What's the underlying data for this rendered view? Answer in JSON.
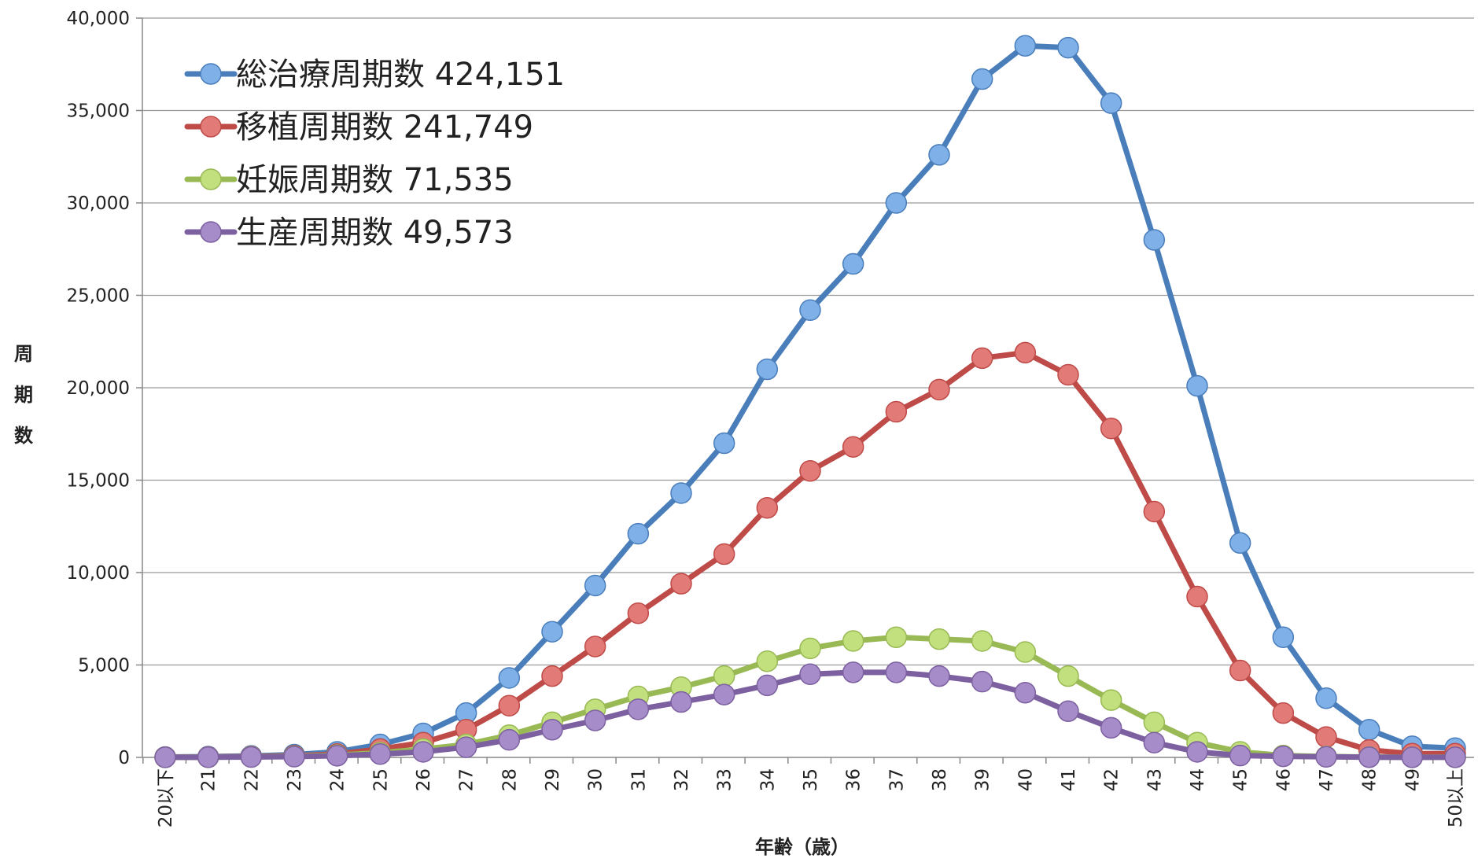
{
  "chart_data": {
    "type": "line",
    "title": "",
    "xlabel": "年齢（歳）",
    "ylabel": "周期数",
    "ylim": [
      0,
      40000
    ],
    "yticks": [
      0,
      5000,
      10000,
      15000,
      20000,
      25000,
      30000,
      35000,
      40000
    ],
    "ytick_labels": [
      "0",
      "5,000",
      "10,000",
      "15,000",
      "20,000",
      "25,000",
      "30,000",
      "35,000",
      "40,000"
    ],
    "grid": true,
    "legend_position": "top-left",
    "categories": [
      "20以下",
      "21",
      "22",
      "23",
      "24",
      "25",
      "26",
      "27",
      "28",
      "29",
      "30",
      "31",
      "32",
      "33",
      "34",
      "35",
      "36",
      "37",
      "38",
      "39",
      "40",
      "41",
      "42",
      "43",
      "44",
      "45",
      "46",
      "47",
      "48",
      "49",
      "50以上"
    ],
    "series": [
      {
        "name": "総治療周期数 424,151",
        "color": "#4a7ebb",
        "marker_color": "#7fb0e8",
        "values": [
          20,
          40,
          80,
          150,
          300,
          700,
          1300,
          2400,
          4300,
          6800,
          9300,
          12100,
          14300,
          17000,
          21000,
          24200,
          26700,
          30000,
          32600,
          36700,
          38500,
          38400,
          35400,
          28000,
          20100,
          11600,
          6500,
          3200,
          1500,
          600,
          500
        ]
      },
      {
        "name": "移植周期数 241,749",
        "color": "#be4b48",
        "marker_color": "#e27a77",
        "values": [
          10,
          20,
          50,
          90,
          180,
          450,
          800,
          1500,
          2800,
          4400,
          6000,
          7800,
          9400,
          11000,
          13500,
          15500,
          16800,
          18700,
          19900,
          21600,
          21900,
          20700,
          17800,
          13300,
          8700,
          4700,
          2400,
          1100,
          400,
          200,
          200
        ]
      },
      {
        "name": "妊娠周期数 71,535",
        "color": "#98b954",
        "marker_color": "#c2e07e",
        "values": [
          5,
          10,
          30,
          60,
          120,
          250,
          450,
          700,
          1200,
          1900,
          2600,
          3300,
          3800,
          4400,
          5200,
          5900,
          6300,
          6500,
          6400,
          6300,
          5700,
          4400,
          3100,
          1900,
          800,
          300,
          100,
          50,
          20,
          10,
          10
        ]
      },
      {
        "name": "生産周期数 49,573",
        "color": "#7d60a0",
        "marker_color": "#a68cc9",
        "values": [
          3,
          8,
          20,
          40,
          90,
          180,
          300,
          550,
          950,
          1500,
          2000,
          2600,
          3000,
          3400,
          3900,
          4500,
          4600,
          4600,
          4400,
          4100,
          3500,
          2500,
          1600,
          800,
          300,
          100,
          60,
          30,
          10,
          5,
          5
        ]
      }
    ]
  }
}
